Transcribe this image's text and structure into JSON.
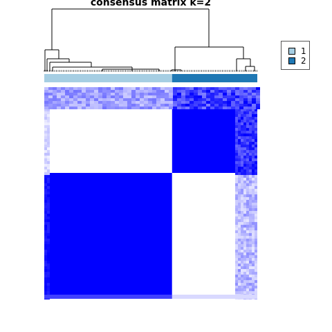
{
  "chart_data": {
    "type": "heatmap",
    "title": "consensus matrix k=2",
    "colors": {
      "high": "#0000ff",
      "low": "#ffffff",
      "class_1": "#a6cee3",
      "class_2": "#1f78b4"
    },
    "legend": {
      "placement": "top-right",
      "entries": [
        {
          "label": "1",
          "color": "#a6cee3"
        },
        {
          "label": "2",
          "color": "#1f78b4"
        }
      ]
    },
    "column_classes": [
      {
        "class": "1",
        "fraction": 0.6
      },
      {
        "class": "2",
        "fraction": 0.4
      }
    ],
    "blocks_description": "rows ordered: small mixed group, class-2 group, class-1 group",
    "matrix_blocks": [
      {
        "row_group": "top",
        "col_group": "class_1",
        "value": 0.35
      },
      {
        "row_group": "top",
        "col_group": "class_2",
        "value": 0.6
      },
      {
        "row_group": "class_2",
        "col_group": "class_1",
        "value": 0.0
      },
      {
        "row_group": "class_2",
        "col_group": "class_2",
        "value": 1.0
      },
      {
        "row_group": "class_1",
        "col_group": "class_1",
        "value": 1.0
      },
      {
        "row_group": "class_1",
        "col_group": "class_2",
        "value": 0.0
      }
    ],
    "grid": false
  }
}
